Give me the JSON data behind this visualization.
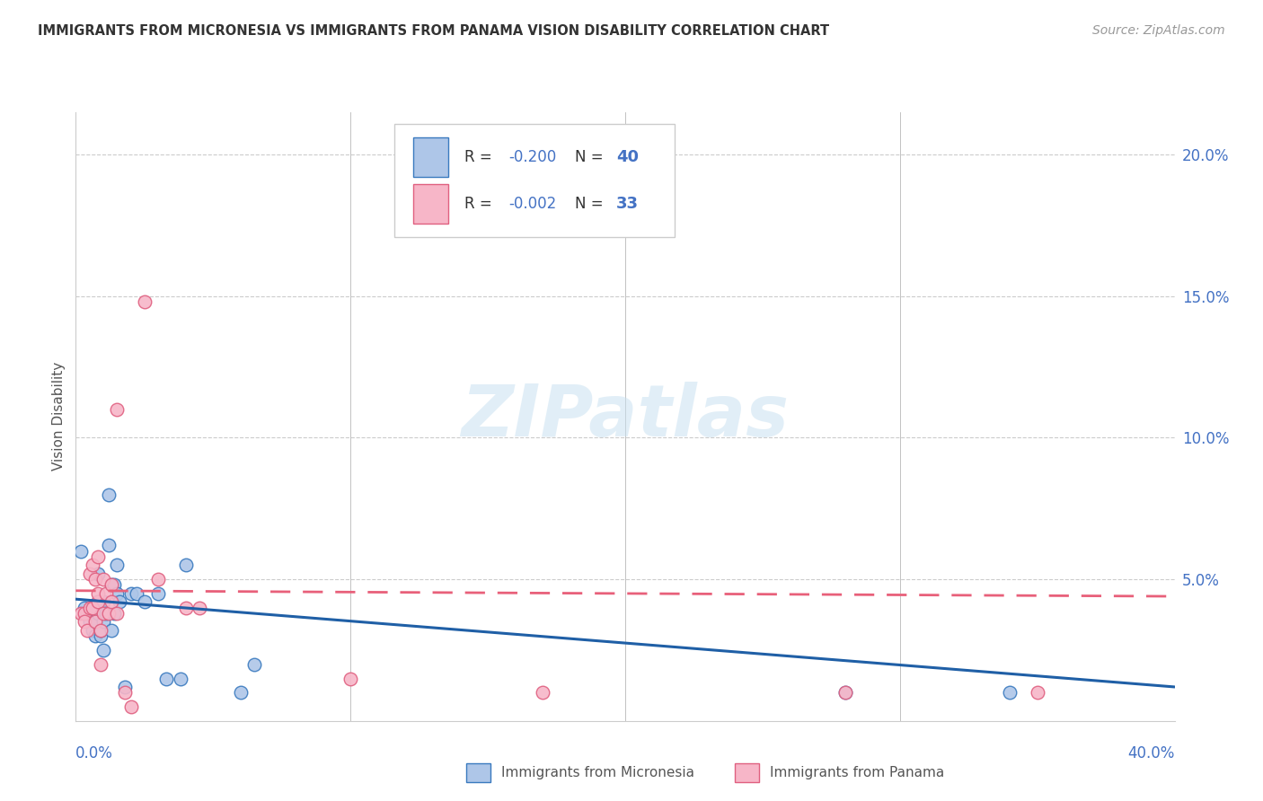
{
  "title": "IMMIGRANTS FROM MICRONESIA VS IMMIGRANTS FROM PANAMA VISION DISABILITY CORRELATION CHART",
  "source": "Source: ZipAtlas.com",
  "ylabel": "Vision Disability",
  "xlim": [
    0.0,
    0.4
  ],
  "ylim": [
    0.0,
    0.215
  ],
  "yticks": [
    0.05,
    0.1,
    0.15,
    0.2
  ],
  "ytick_labels": [
    "5.0%",
    "10.0%",
    "15.0%",
    "20.0%"
  ],
  "micronesia_color": "#aec6e8",
  "panama_color": "#f7b6c8",
  "micronesia_edge_color": "#3a7abf",
  "panama_edge_color": "#e06080",
  "micronesia_line_color": "#1f5fa6",
  "panama_line_color": "#e8607a",
  "text_color_blue": "#4472c4",
  "legend_r1": "-0.200",
  "legend_n1": "40",
  "legend_r2": "-0.002",
  "legend_n2": "33",
  "micronesia_x": [
    0.002,
    0.003,
    0.004,
    0.005,
    0.005,
    0.006,
    0.006,
    0.007,
    0.007,
    0.007,
    0.008,
    0.008,
    0.008,
    0.009,
    0.009,
    0.01,
    0.01,
    0.01,
    0.011,
    0.012,
    0.012,
    0.013,
    0.013,
    0.014,
    0.014,
    0.015,
    0.015,
    0.016,
    0.018,
    0.02,
    0.022,
    0.025,
    0.03,
    0.033,
    0.038,
    0.04,
    0.06,
    0.065,
    0.28,
    0.34
  ],
  "micronesia_y": [
    0.06,
    0.04,
    0.038,
    0.038,
    0.035,
    0.038,
    0.032,
    0.038,
    0.035,
    0.03,
    0.038,
    0.042,
    0.052,
    0.03,
    0.032,
    0.042,
    0.035,
    0.025,
    0.038,
    0.062,
    0.08,
    0.032,
    0.048,
    0.048,
    0.038,
    0.045,
    0.055,
    0.042,
    0.012,
    0.045,
    0.045,
    0.042,
    0.045,
    0.015,
    0.015,
    0.055,
    0.01,
    0.02,
    0.01,
    0.01
  ],
  "panama_x": [
    0.002,
    0.003,
    0.003,
    0.004,
    0.005,
    0.005,
    0.006,
    0.006,
    0.007,
    0.007,
    0.008,
    0.008,
    0.008,
    0.009,
    0.009,
    0.01,
    0.01,
    0.011,
    0.012,
    0.013,
    0.013,
    0.015,
    0.015,
    0.018,
    0.02,
    0.025,
    0.03,
    0.04,
    0.045,
    0.1,
    0.17,
    0.28,
    0.35
  ],
  "panama_y": [
    0.038,
    0.038,
    0.035,
    0.032,
    0.04,
    0.052,
    0.04,
    0.055,
    0.05,
    0.035,
    0.042,
    0.058,
    0.045,
    0.032,
    0.02,
    0.05,
    0.038,
    0.045,
    0.038,
    0.042,
    0.048,
    0.038,
    0.11,
    0.01,
    0.005,
    0.148,
    0.05,
    0.04,
    0.04,
    0.015,
    0.01,
    0.01,
    0.01
  ],
  "mic_trend_x0": 0.0,
  "mic_trend_x1": 0.4,
  "mic_trend_y0": 0.043,
  "mic_trend_y1": 0.012,
  "pan_trend_x0": 0.0,
  "pan_trend_x1": 0.4,
  "pan_trend_y0": 0.046,
  "pan_trend_y1": 0.044,
  "watermark": "ZIPatlas",
  "background_color": "#ffffff"
}
